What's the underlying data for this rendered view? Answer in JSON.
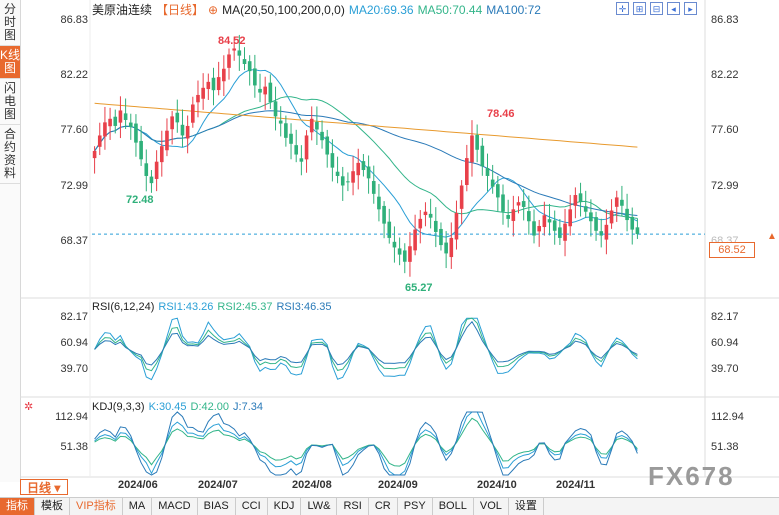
{
  "left_tabs": [
    "分时图",
    "K线图",
    "闪电图",
    "合约资料"
  ],
  "header": {
    "title": "美原油连续",
    "period": "【日线】",
    "circle_icon": "⊕",
    "ma_label": "MA(20,50,100,200,0,0)",
    "ma20": "MA20:69.36",
    "ma50": "MA50:70.44",
    "ma100": "MA100:72"
  },
  "toolbar_icons": [
    "crosshair-icon",
    "zoom-in-icon",
    "zoom-out-icon",
    "move-left-icon",
    "move-right-icon"
  ],
  "toolbar_glyphs": [
    "✛",
    "⊞",
    "⊟",
    "◂",
    "▸"
  ],
  "price_axis": [
    "86.83",
    "82.22",
    "77.60",
    "72.99",
    "68.37"
  ],
  "price_axis_right": [
    "86.83",
    "82.22",
    "77.60",
    "72.99",
    "68.37"
  ],
  "last_price": "68.52",
  "annotations": {
    "high_main": "84.52",
    "low_main": "72.48",
    "high2": "78.46",
    "low2": "65.27"
  },
  "rsi": {
    "label": "RSI(6,12,24)",
    "rsi1": "RSI1:43.26",
    "rsi2": "RSI2:45.37",
    "rsi3": "RSI3:46.35",
    "axis": [
      "82.17",
      "60.94",
      "39.70"
    ]
  },
  "kdj": {
    "label": "KDJ(9,3,3)",
    "k": "K:30.45",
    "d": "D:42.00",
    "j": "J:7.34",
    "axis": [
      "112.94",
      "51.38"
    ]
  },
  "x_axis": [
    "2024/06",
    "2024/07",
    "2024/08",
    "2024/09",
    "2024/10",
    "2024/11"
  ],
  "period_button": "日线",
  "bottom_tabs": [
    "指标",
    "模板",
    "VIP指标",
    "MA",
    "MACD",
    "BIAS",
    "CCI",
    "KDJ",
    "LW&",
    "RSI",
    "CR",
    "PSY",
    "BOLL",
    "VOL",
    "设置"
  ],
  "watermark": "FX678",
  "colors": {
    "up": "#e8404a",
    "down": "#2fb07a",
    "ma20": "#2a9fd6",
    "ma50": "#33b58a",
    "ma100": "#2a7ab8",
    "ma200": "#e89a2e",
    "accent": "#e8692e"
  },
  "chart_data": {
    "type": "candlestick",
    "series_close": [
      75.5,
      76.8,
      77.9,
      78.2,
      77.6,
      78.9,
      78.1,
      77.5,
      76.2,
      74.8,
      73.4,
      72.8,
      74.6,
      75.9,
      77.2,
      78.4,
      77.9,
      76.8,
      77.6,
      79.4,
      80.2,
      80.8,
      81.3,
      80.6,
      81.7,
      82.4,
      83.6,
      84.1,
      83.5,
      82.8,
      82.2,
      81.0,
      80.4,
      80.9,
      79.6,
      78.4,
      77.8,
      76.6,
      76.1,
      75.2,
      74.6,
      76.8,
      78.2,
      77.3,
      76.4,
      75.2,
      74.1,
      73.4,
      72.6,
      72.9,
      73.8,
      74.5,
      73.9,
      73.2,
      71.9,
      70.6,
      69.4,
      68.2,
      67.4,
      66.8,
      66.2,
      67.5,
      68.9,
      69.8,
      70.4,
      69.9,
      68.7,
      67.6,
      66.9,
      68.2,
      70.3,
      72.6,
      74.9,
      76.8,
      75.6,
      74.2,
      73.4,
      72.5,
      71.6,
      70.4,
      69.8,
      70.6,
      71.2,
      70.8,
      69.6,
      68.4,
      69.2,
      70.1,
      69.5,
      68.8,
      68.2,
      69.4,
      70.6,
      71.8,
      71.2,
      70.4,
      69.6,
      68.8,
      68.4,
      69.3,
      70.5,
      71.6,
      70.9,
      69.7,
      68.9,
      68.52
    ],
    "price_range": [
      64.5,
      87.5
    ]
  }
}
